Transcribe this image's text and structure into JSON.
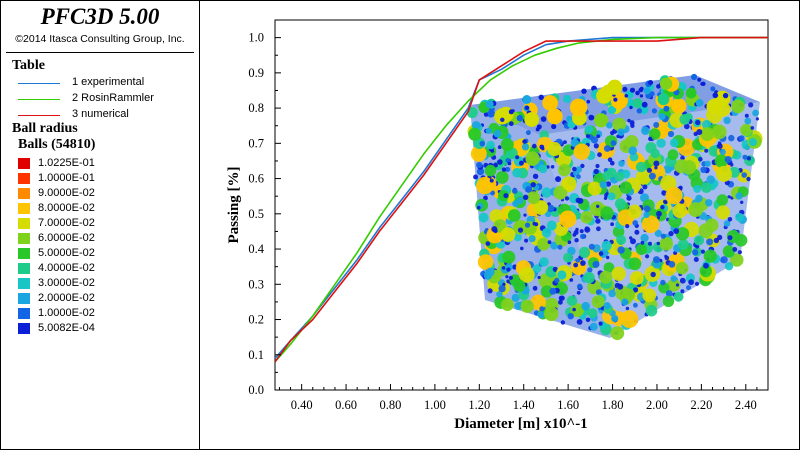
{
  "header": {
    "app_title": "PFC3D 5.00",
    "copyright": "©2014 Itasca Consulting Group, Inc."
  },
  "table_legend": {
    "title": "Table",
    "items": [
      {
        "label": "1 experimental",
        "color": "#1f77d4"
      },
      {
        "label": "2 RosinRammler",
        "color": "#33cc00"
      },
      {
        "label": "3 numerical",
        "color": "#dd1111"
      }
    ]
  },
  "ball_legend": {
    "title": "Ball radius",
    "subtitle": "Balls (54810)",
    "entries": [
      {
        "value": "1.0225E-01",
        "color": "#e00000"
      },
      {
        "value": "1.0000E-01",
        "color": "#ff3300"
      },
      {
        "value": "9.0000E-02",
        "color": "#ff8a00"
      },
      {
        "value": "8.0000E-02",
        "color": "#ffc400"
      },
      {
        "value": "7.0000E-02",
        "color": "#d4dc00"
      },
      {
        "value": "6.0000E-02",
        "color": "#7fd21a"
      },
      {
        "value": "5.0000E-02",
        "color": "#28c828"
      },
      {
        "value": "4.0000E-02",
        "color": "#1ecc8a"
      },
      {
        "value": "3.0000E-02",
        "color": "#18c6c6"
      },
      {
        "value": "2.0000E-02",
        "color": "#1aa6e0"
      },
      {
        "value": "1.0000E-02",
        "color": "#1464e6"
      },
      {
        "value": "5.0082E-04",
        "color": "#0a1fd6"
      }
    ]
  },
  "chart_data": {
    "type": "line",
    "xlabel": "Diameter [m] x10^-1",
    "ylabel": "Passing [%]",
    "xlim": [
      0.28,
      2.5
    ],
    "ylim": [
      0.0,
      1.05
    ],
    "x_ticks": [
      "0.40",
      "0.60",
      "0.80",
      "1.00",
      "1.20",
      "1.40",
      "1.60",
      "1.80",
      "2.00",
      "2.20",
      "2.40"
    ],
    "y_ticks": [
      "0.0",
      "0.1",
      "0.2",
      "0.3",
      "0.4",
      "0.5",
      "0.6",
      "0.7",
      "0.8",
      "0.9",
      "1.0"
    ],
    "grid": false,
    "series": [
      {
        "name": "1 experimental",
        "color": "#1f77d4",
        "x": [
          0.28,
          0.35,
          0.45,
          0.55,
          0.65,
          0.75,
          0.85,
          0.95,
          1.05,
          1.15,
          1.2,
          1.3,
          1.4,
          1.5,
          1.6,
          1.8,
          2.0,
          2.2,
          2.5
        ],
        "y": [
          0.09,
          0.14,
          0.21,
          0.29,
          0.37,
          0.46,
          0.54,
          0.62,
          0.71,
          0.8,
          0.88,
          0.91,
          0.95,
          0.98,
          0.99,
          1.0,
          1.0,
          1.0,
          1.0
        ]
      },
      {
        "name": "2 RosinRammler",
        "color": "#33cc00",
        "x": [
          0.28,
          0.35,
          0.45,
          0.55,
          0.65,
          0.75,
          0.85,
          0.95,
          1.05,
          1.15,
          1.25,
          1.35,
          1.45,
          1.55,
          1.65,
          1.8,
          2.0,
          2.2,
          2.5
        ],
        "y": [
          0.08,
          0.13,
          0.21,
          0.3,
          0.39,
          0.49,
          0.58,
          0.67,
          0.75,
          0.82,
          0.88,
          0.92,
          0.95,
          0.97,
          0.985,
          0.995,
          1.0,
          1.0,
          1.0
        ]
      },
      {
        "name": "3 numerical",
        "color": "#dd1111",
        "x": [
          0.28,
          0.35,
          0.45,
          0.55,
          0.65,
          0.75,
          0.85,
          0.95,
          1.05,
          1.15,
          1.2,
          1.3,
          1.4,
          1.5,
          1.6,
          1.8,
          2.0,
          2.2,
          2.5
        ],
        "y": [
          0.08,
          0.14,
          0.2,
          0.28,
          0.36,
          0.45,
          0.53,
          0.61,
          0.7,
          0.79,
          0.88,
          0.92,
          0.96,
          0.99,
          0.99,
          0.99,
          0.99,
          1.0,
          1.0
        ]
      }
    ]
  },
  "ball_model": {
    "description_colors": [
      "#0a1fd6",
      "#1464e6",
      "#1aa6e0",
      "#18c6c6",
      "#1ecc8a",
      "#28c828",
      "#7fd21a",
      "#d4dc00",
      "#ffc400"
    ]
  }
}
